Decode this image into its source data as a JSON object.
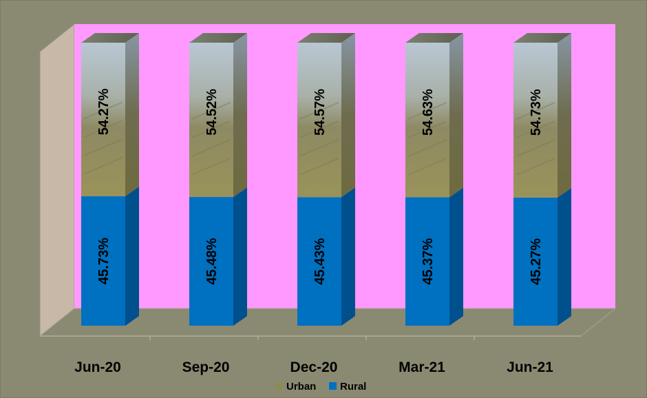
{
  "chart_data": {
    "type": "bar",
    "stacked": true,
    "three_d": true,
    "categories": [
      "Jun-20",
      "Sep-20",
      "Dec-20",
      "Mar-21",
      "Jun-21"
    ],
    "series": [
      {
        "name": "Rural",
        "values": [
          45.73,
          45.48,
          45.43,
          45.37,
          45.27
        ],
        "labels": [
          "45.73%",
          "45.48%",
          "45.43%",
          "45.37%",
          "45.27%"
        ],
        "color": "#0070C0"
      },
      {
        "name": "Urban",
        "values": [
          54.27,
          54.52,
          54.57,
          54.63,
          54.73
        ],
        "labels": [
          "54.27%",
          "54.52%",
          "54.57%",
          "54.63%",
          "54.73%"
        ],
        "color": "#9A9064"
      }
    ],
    "ylim": [
      0,
      100
    ],
    "legend": {
      "position": "bottom",
      "items": [
        "Urban",
        "Rural"
      ]
    },
    "colors": {
      "outer_background": "#8A8A72",
      "plot_back_wall": "#FF99FF",
      "side_wall": "#C8B8A8",
      "floor": "#8A8A72",
      "rural_front": "#0070C0",
      "rural_side": "#00508E",
      "urban_sky": "#A8B8C8",
      "urban_ground": "#8E8A58"
    }
  }
}
